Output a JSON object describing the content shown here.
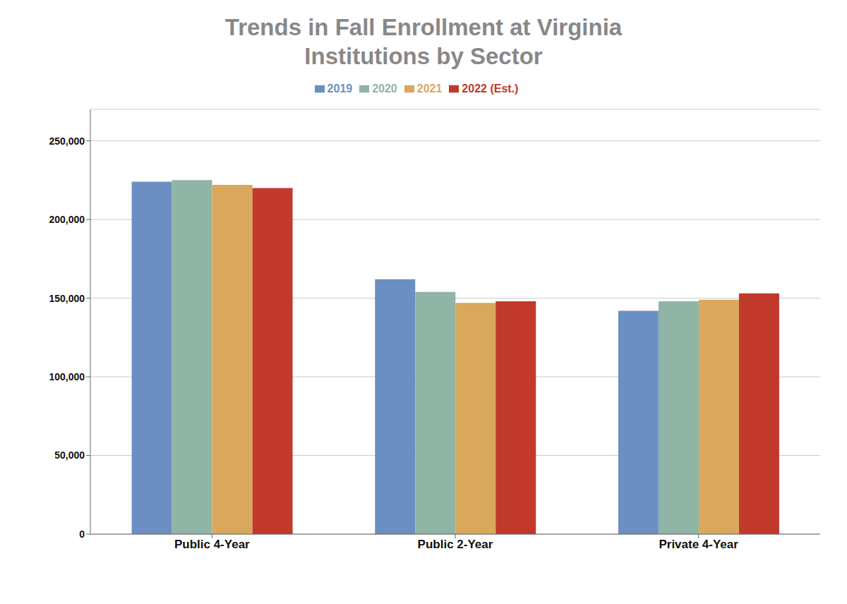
{
  "chart_data": {
    "type": "bar",
    "title": "Trends in Fall Enrollment at Virginia\nInstitutions by Sector",
    "title_color": "#888888",
    "categories": [
      "Public 4-Year",
      "Public 2-Year",
      "Private 4-Year"
    ],
    "series": [
      {
        "name": "2019",
        "color": "#6b8fc2",
        "values": [
          224000,
          162000,
          142000
        ]
      },
      {
        "name": "2020",
        "color": "#90b4a6",
        "values": [
          225000,
          154000,
          148000
        ]
      },
      {
        "name": "2021",
        "color": "#d9a85c",
        "values": [
          222000,
          147000,
          149000
        ]
      },
      {
        "name": "2022 (Est.)",
        "color": "#c0392b",
        "values": [
          220000,
          148000,
          153000
        ]
      }
    ],
    "ylim": [
      0,
      270000
    ],
    "yticks": [
      0,
      {
        "value": 50000,
        "label": "50,000"
      },
      {
        "value": 100000,
        "label": "100,000"
      },
      {
        "value": 150000,
        "label": "150,000"
      },
      {
        "value": 200000,
        "label": "200,000"
      },
      {
        "value": 250000,
        "label": "250,000"
      }
    ],
    "grid": true,
    "legend": "top"
  }
}
